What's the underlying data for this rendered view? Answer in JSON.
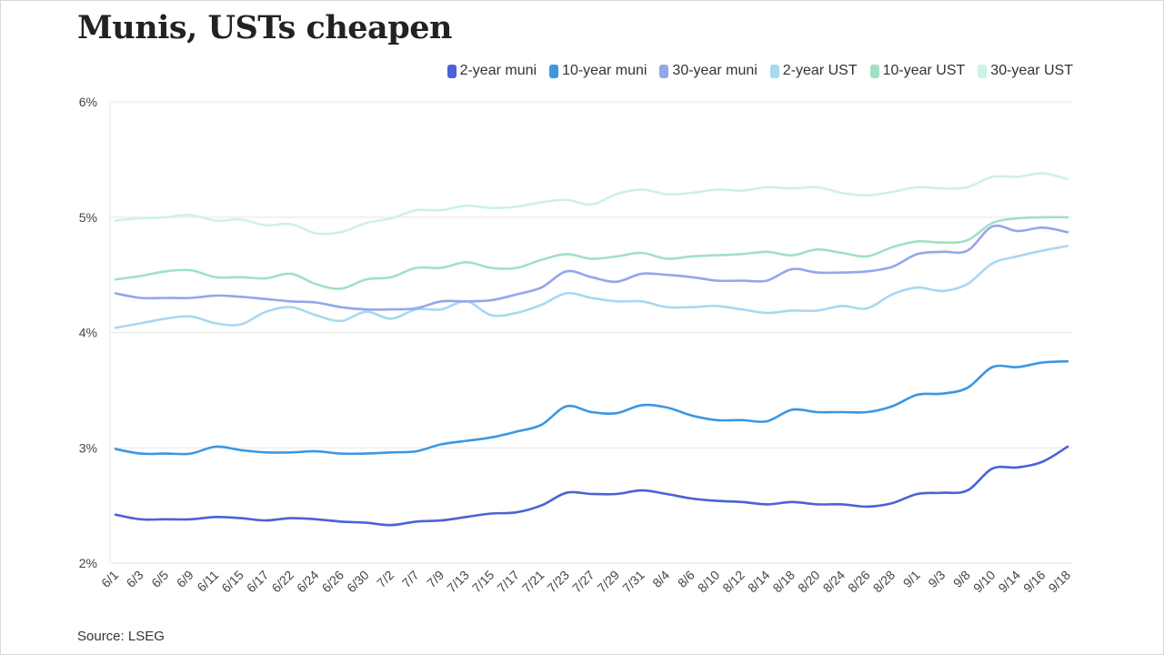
{
  "title": "Munis, USTs cheapen",
  "source": "Source: LSEG",
  "chart_data": {
    "type": "line",
    "title": "Munis, USTs cheapen",
    "xlabel": "",
    "ylabel": "",
    "ylim": [
      2,
      6
    ],
    "yticks": [
      2,
      3,
      4,
      5,
      6
    ],
    "ytick_labels": [
      "2%",
      "3%",
      "4%",
      "5%",
      "6%"
    ],
    "grid": true,
    "legend_position": "top-right",
    "x_tick_labels": [
      "6/1",
      "6/3",
      "6/5",
      "6/9",
      "6/11",
      "6/15",
      "6/17",
      "6/22",
      "6/24",
      "6/26",
      "6/30",
      "7/2",
      "7/7",
      "7/9",
      "7/13",
      "7/15",
      "7/17",
      "7/21",
      "7/23",
      "7/27",
      "7/29",
      "7/31",
      "8/4",
      "8/6",
      "8/10",
      "8/12",
      "8/14",
      "8/18",
      "8/20",
      "8/24",
      "8/26",
      "8/28",
      "9/1",
      "9/3",
      "9/8",
      "9/10",
      "9/14",
      "9/16",
      "9/18"
    ],
    "series": [
      {
        "name": "2-year muni",
        "color": "#4a62d8",
        "values": [
          2.42,
          2.38,
          2.38,
          2.38,
          2.4,
          2.39,
          2.37,
          2.39,
          2.38,
          2.36,
          2.35,
          2.33,
          2.36,
          2.37,
          2.4,
          2.43,
          2.44,
          2.5,
          2.61,
          2.6,
          2.6,
          2.63,
          2.6,
          2.56,
          2.54,
          2.53,
          2.51,
          2.53,
          2.51,
          2.51,
          2.49,
          2.52,
          2.6,
          2.61,
          2.63,
          2.82,
          2.83,
          2.88,
          3.01
        ]
      },
      {
        "name": "10-year muni",
        "color": "#3c97e0",
        "values": [
          2.99,
          2.95,
          2.95,
          2.95,
          3.01,
          2.98,
          2.96,
          2.96,
          2.97,
          2.95,
          2.95,
          2.96,
          2.97,
          3.03,
          3.06,
          3.09,
          3.14,
          3.2,
          3.36,
          3.31,
          3.3,
          3.37,
          3.35,
          3.28,
          3.24,
          3.24,
          3.23,
          3.33,
          3.31,
          3.31,
          3.31,
          3.36,
          3.46,
          3.47,
          3.52,
          3.7,
          3.7,
          3.74,
          3.75
        ]
      },
      {
        "name": "30-year muni",
        "color": "#94a6ec",
        "values": [
          4.34,
          4.3,
          4.3,
          4.3,
          4.32,
          4.31,
          4.29,
          4.27,
          4.26,
          4.22,
          4.2,
          4.2,
          4.21,
          4.27,
          4.27,
          4.28,
          4.33,
          4.39,
          4.53,
          4.48,
          4.44,
          4.51,
          4.5,
          4.48,
          4.45,
          4.45,
          4.45,
          4.55,
          4.52,
          4.52,
          4.53,
          4.57,
          4.68,
          4.7,
          4.71,
          4.92,
          4.88,
          4.91,
          4.87
        ]
      },
      {
        "name": "2-year UST",
        "color": "#a8d8f2",
        "values": [
          4.04,
          4.08,
          4.12,
          4.14,
          4.08,
          4.07,
          4.18,
          4.22,
          4.15,
          4.1,
          4.18,
          4.12,
          4.2,
          4.2,
          4.27,
          4.15,
          4.17,
          4.24,
          4.34,
          4.3,
          4.27,
          4.27,
          4.22,
          4.22,
          4.23,
          4.2,
          4.17,
          4.19,
          4.19,
          4.23,
          4.21,
          4.33,
          4.39,
          4.36,
          4.42,
          4.6,
          4.66,
          4.71,
          4.75
        ]
      },
      {
        "name": "10-year UST",
        "color": "#a2e0c6",
        "values": [
          4.46,
          4.49,
          4.53,
          4.54,
          4.48,
          4.48,
          4.47,
          4.51,
          4.42,
          4.38,
          4.46,
          4.48,
          4.56,
          4.56,
          4.61,
          4.56,
          4.56,
          4.63,
          4.68,
          4.64,
          4.66,
          4.69,
          4.64,
          4.66,
          4.67,
          4.68,
          4.7,
          4.67,
          4.72,
          4.69,
          4.66,
          4.74,
          4.79,
          4.78,
          4.8,
          4.95,
          4.99,
          5.0,
          5.0
        ]
      },
      {
        "name": "30-year UST",
        "color": "#cdf2e6",
        "values": [
          4.97,
          4.99,
          5.0,
          5.02,
          4.97,
          4.98,
          4.93,
          4.94,
          4.86,
          4.87,
          4.95,
          4.99,
          5.06,
          5.06,
          5.1,
          5.08,
          5.09,
          5.13,
          5.15,
          5.11,
          5.2,
          5.24,
          5.2,
          5.21,
          5.24,
          5.23,
          5.26,
          5.25,
          5.26,
          5.21,
          5.19,
          5.22,
          5.26,
          5.25,
          5.26,
          5.35,
          5.35,
          5.38,
          5.33
        ]
      }
    ]
  }
}
